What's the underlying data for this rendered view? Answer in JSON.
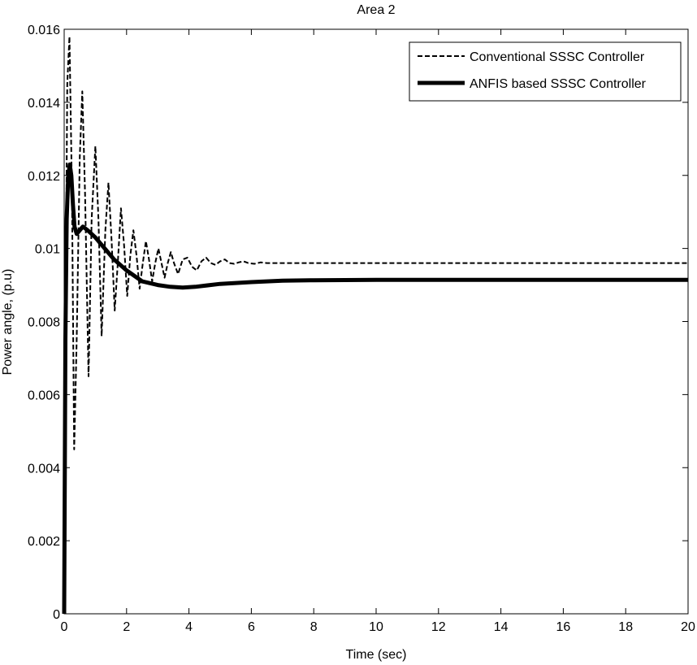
{
  "chart_data": {
    "type": "line",
    "title": "Area 2",
    "xlabel": "Time (sec)",
    "ylabel": "Power angle, (p.u)",
    "xlim": [
      0,
      20
    ],
    "ylim": [
      0,
      0.016
    ],
    "x_ticks": [
      "0",
      "2",
      "4",
      "6",
      "8",
      "10",
      "12",
      "14",
      "16",
      "18",
      "20"
    ],
    "y_ticks": [
      "0",
      "0.002",
      "0.004",
      "0.006",
      "0.008",
      "0.01",
      "0.012",
      "0.014",
      "0.016"
    ],
    "grid": false,
    "legend_position": "top-right",
    "series": [
      {
        "name": "Conventional SSSC Controller",
        "style": "dashed",
        "color": "#000000",
        "points": [
          [
            0,
            0
          ],
          [
            0.05,
            0.0085
          ],
          [
            0.1,
            0.0145
          ],
          [
            0.17,
            0.0158
          ],
          [
            0.25,
            0.0115
          ],
          [
            0.32,
            0.0045
          ],
          [
            0.4,
            0.0075
          ],
          [
            0.5,
            0.0125
          ],
          [
            0.58,
            0.0143
          ],
          [
            0.67,
            0.0115
          ],
          [
            0.78,
            0.0065
          ],
          [
            0.88,
            0.0108
          ],
          [
            1.0,
            0.0128
          ],
          [
            1.1,
            0.0108
          ],
          [
            1.2,
            0.0076
          ],
          [
            1.32,
            0.0105
          ],
          [
            1.42,
            0.0118
          ],
          [
            1.52,
            0.0102
          ],
          [
            1.62,
            0.0083
          ],
          [
            1.72,
            0.0096
          ],
          [
            1.82,
            0.0111
          ],
          [
            1.92,
            0.0101
          ],
          [
            2.02,
            0.0087
          ],
          [
            2.12,
            0.0098
          ],
          [
            2.22,
            0.0105
          ],
          [
            2.32,
            0.0098
          ],
          [
            2.42,
            0.0089
          ],
          [
            2.52,
            0.0096
          ],
          [
            2.62,
            0.0102
          ],
          [
            2.72,
            0.0097
          ],
          [
            2.82,
            0.0091
          ],
          [
            2.92,
            0.0096
          ],
          [
            3.02,
            0.01
          ],
          [
            3.12,
            0.0096
          ],
          [
            3.22,
            0.0092
          ],
          [
            3.32,
            0.0096
          ],
          [
            3.42,
            0.0099
          ],
          [
            3.52,
            0.0096
          ],
          [
            3.65,
            0.0093
          ],
          [
            3.8,
            0.0097
          ],
          [
            3.95,
            0.00975
          ],
          [
            4.1,
            0.0095
          ],
          [
            4.25,
            0.0094
          ],
          [
            4.4,
            0.00965
          ],
          [
            4.55,
            0.00975
          ],
          [
            4.7,
            0.0096
          ],
          [
            4.85,
            0.00955
          ],
          [
            5.0,
            0.00965
          ],
          [
            5.15,
            0.0097
          ],
          [
            5.3,
            0.0096
          ],
          [
            5.45,
            0.00958
          ],
          [
            5.6,
            0.00962
          ],
          [
            5.75,
            0.00965
          ],
          [
            5.9,
            0.0096
          ],
          [
            6.1,
            0.00958
          ],
          [
            6.3,
            0.00962
          ],
          [
            6.5,
            0.0096
          ],
          [
            8,
            0.0096
          ],
          [
            12,
            0.0096
          ],
          [
            16,
            0.0096
          ],
          [
            20,
            0.0096
          ]
        ]
      },
      {
        "name": "ANFIS based SSSC Controller",
        "style": "solid-thick",
        "color": "#000000",
        "points": [
          [
            0,
            0
          ],
          [
            0.04,
            0.0075
          ],
          [
            0.08,
            0.0108
          ],
          [
            0.13,
            0.012
          ],
          [
            0.18,
            0.0123
          ],
          [
            0.23,
            0.012
          ],
          [
            0.28,
            0.0112
          ],
          [
            0.33,
            0.0106
          ],
          [
            0.4,
            0.0104
          ],
          [
            0.5,
            0.0105
          ],
          [
            0.6,
            0.0106
          ],
          [
            0.75,
            0.0105
          ],
          [
            1.0,
            0.0103
          ],
          [
            1.3,
            0.01
          ],
          [
            1.6,
            0.0097
          ],
          [
            2.0,
            0.0094
          ],
          [
            2.5,
            0.0091
          ],
          [
            3.0,
            0.009
          ],
          [
            3.4,
            0.00895
          ],
          [
            3.8,
            0.00893
          ],
          [
            4.2,
            0.00895
          ],
          [
            5.0,
            0.00903
          ],
          [
            6.0,
            0.00908
          ],
          [
            7.0,
            0.00912
          ],
          [
            8.0,
            0.00913
          ],
          [
            10,
            0.00914
          ],
          [
            14,
            0.00914
          ],
          [
            20,
            0.00914
          ]
        ]
      }
    ]
  }
}
